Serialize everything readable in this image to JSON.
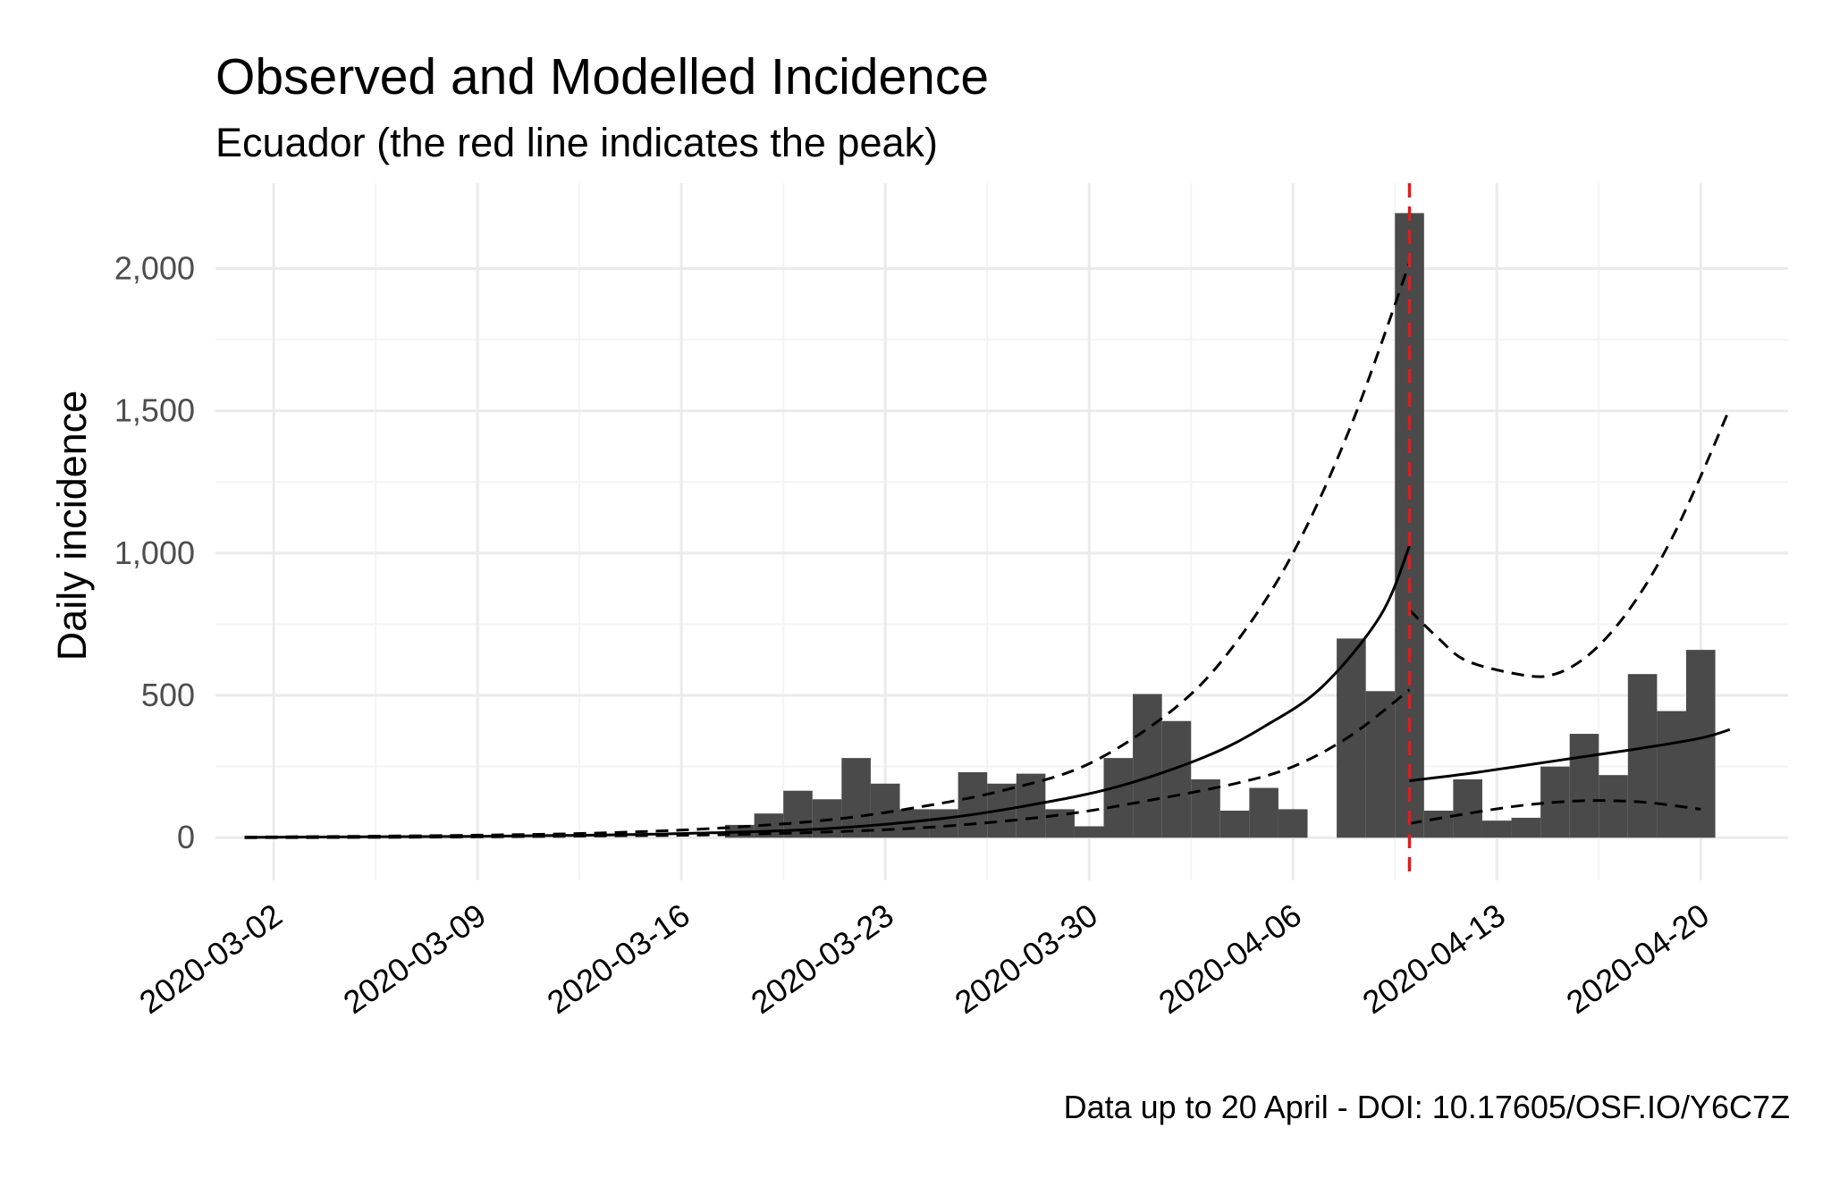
{
  "chart_data": {
    "type": "bar",
    "title": "Observed and Modelled Incidence",
    "subtitle": "Ecuador (the red line indicates the peak)",
    "caption": "Data up to 20 April - DOI: 10.17605/OSF.IO/Y6C7Z",
    "xlabel": "",
    "ylabel": "Daily incidence",
    "ylim": [
      -150,
      2300
    ],
    "xlim": [
      "2020-02-29",
      "2020-04-23"
    ],
    "grid": true,
    "x_ticks": [
      "2020-03-02",
      "2020-03-09",
      "2020-03-16",
      "2020-03-23",
      "2020-03-30",
      "2020-04-06",
      "2020-04-13",
      "2020-04-20"
    ],
    "y_ticks": [
      {
        "value": 0,
        "label": "0"
      },
      {
        "value": 500,
        "label": "500"
      },
      {
        "value": 1000,
        "label": "1,000"
      },
      {
        "value": 1500,
        "label": "1,500"
      },
      {
        "value": 2000,
        "label": "2,000"
      }
    ],
    "bar_color": "#4a4a4a",
    "peak_color": "#e31a1c",
    "peak_date": "2020-04-10",
    "observed": {
      "dates": [
        "2020-03-18",
        "2020-03-19",
        "2020-03-20",
        "2020-03-21",
        "2020-03-22",
        "2020-03-23",
        "2020-03-24",
        "2020-03-25",
        "2020-03-26",
        "2020-03-27",
        "2020-03-28",
        "2020-03-29",
        "2020-03-30",
        "2020-03-31",
        "2020-04-01",
        "2020-04-02",
        "2020-04-03",
        "2020-04-04",
        "2020-04-05",
        "2020-04-06",
        "2020-04-08",
        "2020-04-09",
        "2020-04-10",
        "2020-04-11",
        "2020-04-12",
        "2020-04-13",
        "2020-04-14",
        "2020-04-15",
        "2020-04-16",
        "2020-04-17",
        "2020-04-18",
        "2020-04-19",
        "2020-04-20"
      ],
      "values": [
        45,
        85,
        165,
        135,
        280,
        190,
        100,
        100,
        230,
        190,
        225,
        100,
        40,
        280,
        505,
        410,
        205,
        95,
        175,
        100,
        700,
        515,
        2195,
        95,
        205,
        60,
        70,
        250,
        365,
        220,
        575,
        445,
        660
      ]
    },
    "series": [
      {
        "style": "solid",
        "segments": [
          {
            "dates": [
              "2020-03-01",
              "2020-03-05",
              "2020-03-09",
              "2020-03-13",
              "2020-03-17",
              "2020-03-21",
              "2020-03-25",
              "2020-03-28",
              "2020-03-31",
              "2020-04-03",
              "2020-04-05",
              "2020-04-07",
              "2020-04-09",
              "2020-04-10"
            ],
            "values": [
              1,
              3,
              5,
              9,
              17,
              32,
              68,
              115,
              180,
              285,
              390,
              530,
              780,
              1025
            ]
          },
          {
            "dates": [
              "2020-04-10",
              "2020-04-12",
              "2020-04-14",
              "2020-04-16",
              "2020-04-18",
              "2020-04-20",
              "2020-04-21"
            ],
            "values": [
              200,
              225,
              255,
              285,
              315,
              350,
              380
            ]
          }
        ]
      },
      {
        "style": "dashed",
        "segments": [
          {
            "dates": [
              "2020-03-01",
              "2020-03-05",
              "2020-03-09",
              "2020-03-13",
              "2020-03-17",
              "2020-03-21",
              "2020-03-24",
              "2020-03-27",
              "2020-03-30",
              "2020-04-02",
              "2020-04-04",
              "2020-04-06",
              "2020-04-08",
              "2020-04-10"
            ],
            "values": [
              2,
              5,
              9,
              16,
              32,
              62,
              105,
              165,
              260,
              460,
              680,
              1000,
              1450,
              2020
            ]
          },
          {
            "dates": [
              "2020-04-10",
              "2020-04-11",
              "2020-04-12",
              "2020-04-14",
              "2020-04-15",
              "2020-04-16",
              "2020-04-17",
              "2020-04-18",
              "2020-04-19",
              "2020-04-20",
              "2020-04-21"
            ],
            "values": [
              800,
              700,
              620,
              570,
              575,
              630,
              730,
              870,
              1050,
              1270,
              1510
            ]
          }
        ]
      },
      {
        "style": "dashed",
        "segments": [
          {
            "dates": [
              "2020-03-01",
              "2020-03-05",
              "2020-03-09",
              "2020-03-13",
              "2020-03-17",
              "2020-03-21",
              "2020-03-25",
              "2020-03-29",
              "2020-04-01",
              "2020-04-04",
              "2020-04-06",
              "2020-04-08",
              "2020-04-10"
            ],
            "values": [
              0,
              1,
              3,
              6,
              10,
              20,
              40,
              80,
              130,
              190,
              250,
              360,
              520
            ]
          },
          {
            "dates": [
              "2020-04-10",
              "2020-04-12",
              "2020-04-14",
              "2020-04-16",
              "2020-04-18",
              "2020-04-20"
            ],
            "values": [
              50,
              85,
              115,
              130,
              125,
              100
            ]
          }
        ]
      }
    ]
  }
}
